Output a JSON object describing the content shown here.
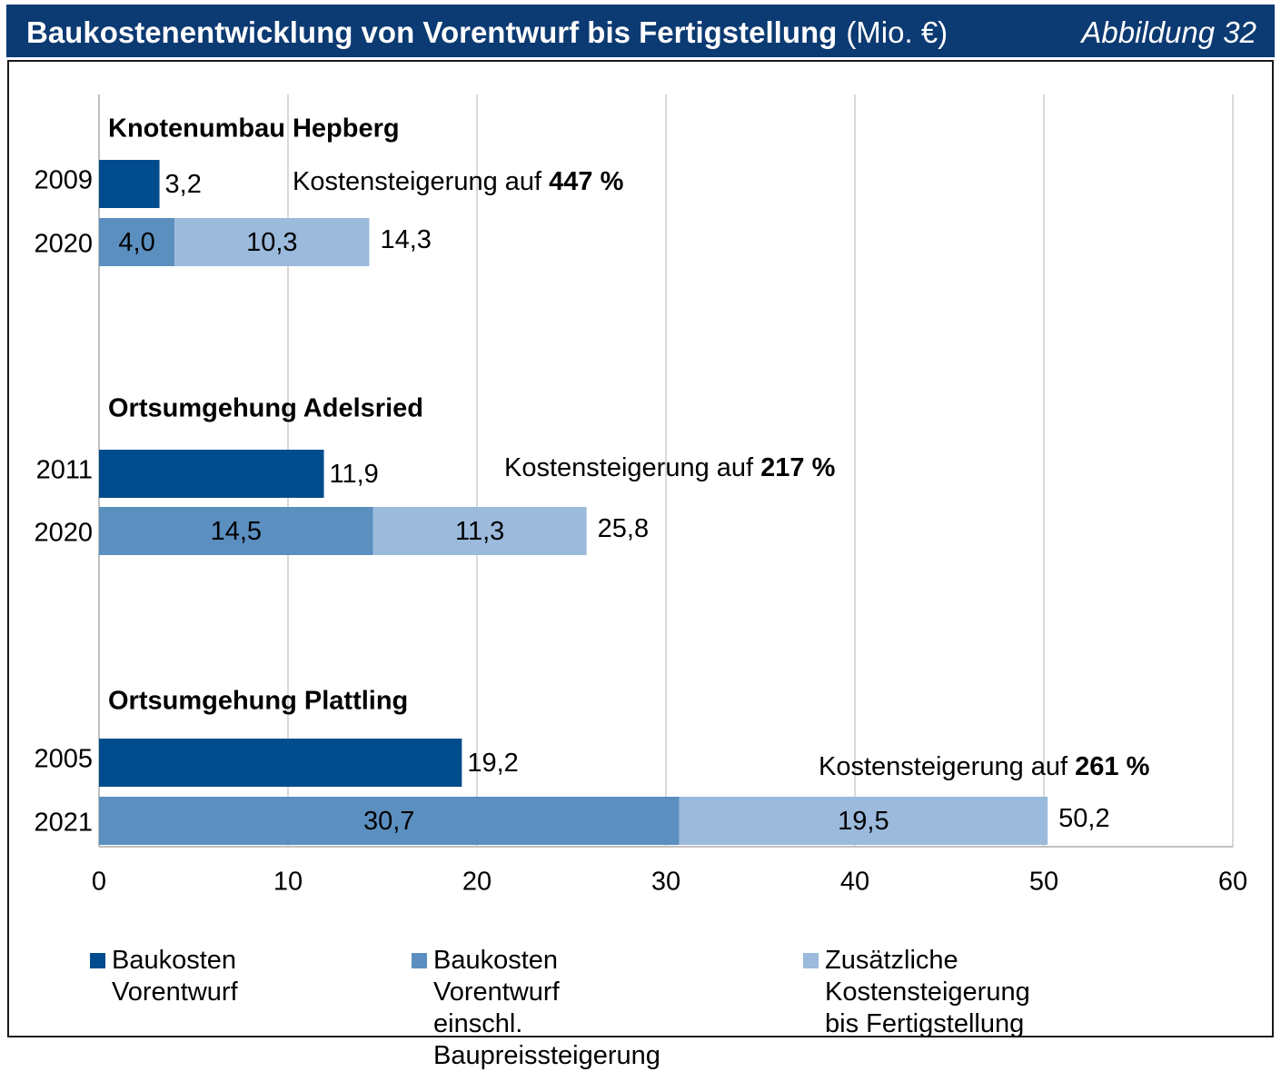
{
  "header": {
    "title": "Baukostenentwicklung von Vorentwurf bis Fertigstellung",
    "unit": "(Mio. €)",
    "figure": "Abbildung 32"
  },
  "colors": {
    "header_bg": "#0c3a72",
    "baukosten_vorentwurf": "#004c8c",
    "baukosten_baupreis": "#5b8fc0",
    "zusaetzlich": "#9bbadc",
    "gridline": "#d9d9d9"
  },
  "chart_data": {
    "type": "bar",
    "orientation": "horizontal",
    "stacked": true,
    "xlim": [
      0,
      60
    ],
    "xticks": [
      "0",
      "10",
      "20",
      "30",
      "40",
      "50",
      "60"
    ],
    "grid": true,
    "legend_position": "bottom",
    "series": [
      {
        "name": "Baukosten Vorentwurf",
        "color": "#004c8c"
      },
      {
        "name": "Baukosten Vorentwurf einschl. Baupreissteigerung",
        "color": "#5b8fc0"
      },
      {
        "name": "Zusätzliche Kostensteigerung bis Fertigstellung",
        "color": "#9bbadc"
      }
    ],
    "groups": [
      {
        "name": "Knotenumbau Hepberg",
        "increase_prefix": "Kostensteigerung auf ",
        "increase_value": "447 %",
        "bars": [
          {
            "year": "2009",
            "segments": [
              {
                "series": 0,
                "value": 3.2,
                "label": ""
              }
            ],
            "total_label": "3,2"
          },
          {
            "year": "2020",
            "segments": [
              {
                "series": 1,
                "value": 4.0,
                "label": "4,0"
              },
              {
                "series": 2,
                "value": 10.3,
                "label": "10,3"
              }
            ],
            "total_label": "14,3"
          }
        ]
      },
      {
        "name": "Ortsumgehung Adelsried",
        "increase_prefix": "Kostensteigerung auf ",
        "increase_value": "217 %",
        "bars": [
          {
            "year": "2011",
            "segments": [
              {
                "series": 0,
                "value": 11.9,
                "label": ""
              }
            ],
            "total_label": "11,9"
          },
          {
            "year": "2020",
            "segments": [
              {
                "series": 1,
                "value": 14.5,
                "label": "14,5"
              },
              {
                "series": 2,
                "value": 11.3,
                "label": "11,3"
              }
            ],
            "total_label": "25,8"
          }
        ]
      },
      {
        "name": "Ortsumgehung Plattling",
        "increase_prefix": "Kostensteigerung auf ",
        "increase_value": "261 %",
        "bars": [
          {
            "year": "2005",
            "segments": [
              {
                "series": 0,
                "value": 19.2,
                "label": ""
              }
            ],
            "total_label": "19,2"
          },
          {
            "year": "2021",
            "segments": [
              {
                "series": 1,
                "value": 30.7,
                "label": "30,7"
              },
              {
                "series": 2,
                "value": 19.5,
                "label": "19,5"
              }
            ],
            "total_label": "50,2"
          }
        ]
      }
    ]
  },
  "legend": {
    "item1": "Baukosten Vorentwurf",
    "item2": "Baukosten Vorentwurf\neinschl. Baupreissteigerung",
    "item3": "Zusätzliche Kostensteigerung\nbis Fertigstellung"
  }
}
